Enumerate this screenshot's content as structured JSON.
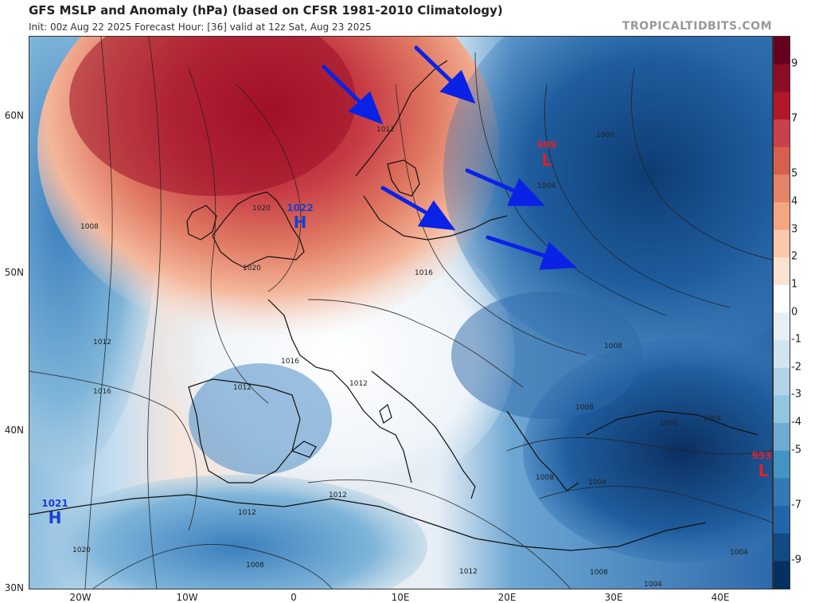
{
  "header": {
    "title": "GFS MSLP and Anomaly (hPa) (based on CFSR 1981-2010 Climatology)",
    "subtitle": "Init: 00z Aug 22 2025   Forecast Hour: [36]   valid at 12z Sat, Aug 23 2025",
    "brand": "TROPICALTIDBITS.COM"
  },
  "axes": {
    "lat_labels": [
      "60N",
      "50N",
      "40N",
      "30N"
    ],
    "lon_labels": [
      "20W",
      "10W",
      "0",
      "10E",
      "20E",
      "30E",
      "40E"
    ]
  },
  "colorbar": {
    "labels": [
      "9",
      "7",
      "5",
      "4",
      "3",
      "2",
      "1",
      "0",
      "-1",
      "-2",
      "-3",
      "-4",
      "-5",
      "-7",
      "-9"
    ],
    "colors": [
      "#67001f",
      "#8c0d25",
      "#b2182b",
      "#c8414b",
      "#d6604d",
      "#e58368",
      "#f4a582",
      "#f9c9ad",
      "#fbe3d4",
      "#ffffff",
      "#e6eff6",
      "#d1e5f0",
      "#b3d3e8",
      "#92c5de",
      "#6fabd2",
      "#4393c3",
      "#3479b5",
      "#2166ac",
      "#124a86",
      "#053061"
    ]
  },
  "pressure_centers": [
    {
      "value": "1022",
      "letter": "H",
      "color": "#1a3fd0"
    },
    {
      "value": "1021",
      "letter": "H",
      "color": "#1a3fd0"
    },
    {
      "value": "999",
      "letter": "L",
      "color": "#e0202a"
    },
    {
      "value": "993",
      "letter": "L",
      "color": "#e0202a"
    }
  ],
  "isobar_labels": [
    "1012",
    "1008",
    "1020",
    "1020",
    "1016",
    "1012",
    "1016",
    "1012",
    "1016",
    "1012",
    "1012",
    "1020",
    "1012",
    "1008",
    "1004",
    "1000",
    "1008",
    "1008",
    "1004",
    "1000",
    "1004",
    "1008",
    "1004",
    "1012",
    "1008",
    "1004"
  ]
}
